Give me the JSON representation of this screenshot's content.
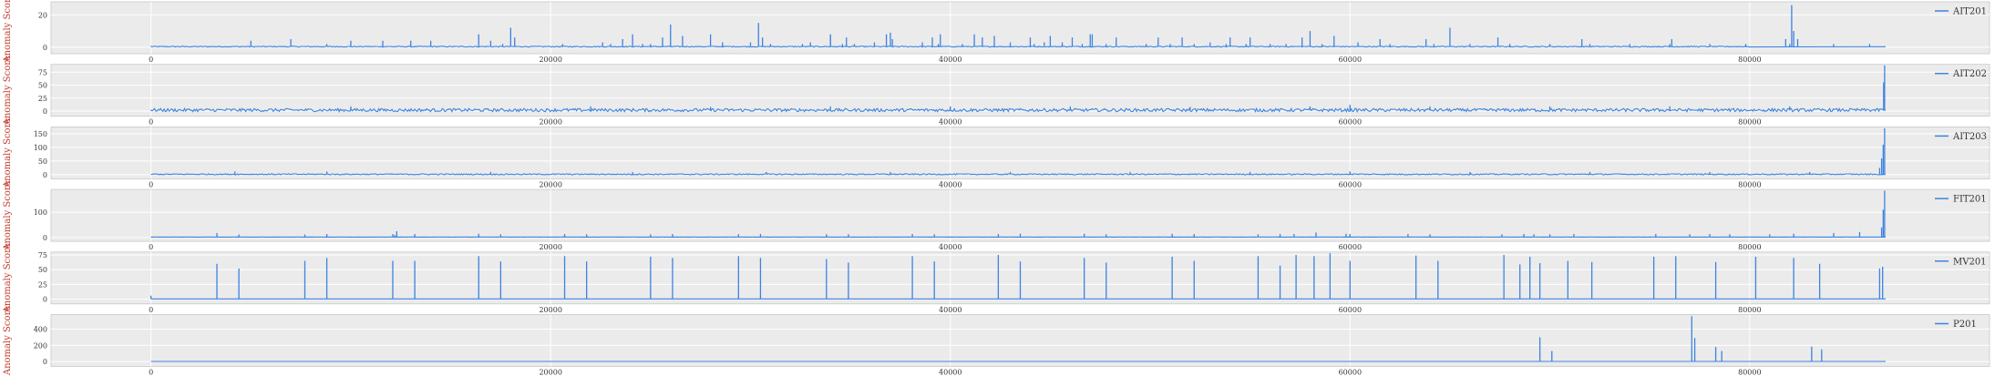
{
  "figure": {
    "ylabel": "Anomaly Score",
    "colors": {
      "line": "#3c83e0",
      "panel_bg": "#ebebeb",
      "grid": "#ffffff",
      "frame": "#c8c8c8",
      "ylabel": "#c0392b"
    }
  },
  "chart_data": [
    {
      "type": "line",
      "series": [
        {
          "name": "AIT201"
        }
      ],
      "xlim": [
        -5000,
        92000
      ],
      "ylim": [
        -4,
        28
      ],
      "yticks": [
        0,
        20
      ],
      "xticks": [
        0,
        20000,
        40000,
        60000,
        80000
      ],
      "baseline": 0.3,
      "noise": 0.6,
      "noise_range": [
        0,
        80000
      ],
      "spikes": [
        [
          8800,
          2
        ],
        [
          17000,
          4
        ],
        [
          17600,
          2
        ],
        [
          20600,
          2
        ],
        [
          22600,
          3
        ],
        [
          23000,
          2
        ],
        [
          23600,
          5
        ],
        [
          24600,
          2
        ],
        [
          25000,
          2
        ],
        [
          28600,
          3
        ],
        [
          30000,
          3
        ],
        [
          31000,
          2
        ],
        [
          32600,
          2
        ],
        [
          33000,
          3
        ],
        [
          34600,
          2
        ],
        [
          35200,
          2
        ],
        [
          36200,
          3
        ],
        [
          38600,
          3
        ],
        [
          39400,
          2
        ],
        [
          40600,
          2
        ],
        [
          43000,
          3
        ],
        [
          44200,
          2
        ],
        [
          44700,
          3
        ],
        [
          45600,
          3
        ],
        [
          46600,
          2
        ],
        [
          47800,
          2
        ],
        [
          49800,
          2
        ],
        [
          51000,
          2
        ],
        [
          52200,
          2
        ],
        [
          53000,
          3
        ],
        [
          53800,
          2
        ],
        [
          54800,
          2
        ],
        [
          56000,
          2
        ],
        [
          56800,
          2
        ],
        [
          58600,
          2
        ],
        [
          60400,
          3
        ],
        [
          62000,
          2
        ],
        [
          64200,
          2
        ],
        [
          66000,
          2
        ],
        [
          68000,
          2
        ],
        [
          70000,
          2
        ],
        [
          72000,
          2
        ],
        [
          74000,
          2
        ],
        [
          76000,
          2
        ],
        [
          78000,
          2
        ],
        [
          79800,
          2
        ],
        [
          82000,
          2
        ],
        [
          84200,
          2
        ],
        [
          86000,
          2
        ],
        [
          16400,
          8
        ],
        [
          18000,
          12
        ],
        [
          18200,
          6
        ],
        [
          24100,
          8
        ],
        [
          25600,
          6
        ],
        [
          26600,
          7
        ],
        [
          28000,
          8
        ],
        [
          30600,
          6
        ],
        [
          34000,
          8
        ],
        [
          34800,
          6
        ],
        [
          36800,
          8
        ],
        [
          37100,
          5
        ],
        [
          39100,
          6
        ],
        [
          41200,
          8
        ],
        [
          41600,
          6
        ],
        [
          42200,
          7
        ],
        [
          44000,
          6
        ],
        [
          45000,
          7
        ],
        [
          46100,
          6
        ],
        [
          47000,
          8
        ],
        [
          48300,
          6
        ],
        [
          50400,
          6
        ],
        [
          51600,
          6
        ],
        [
          54000,
          6
        ],
        [
          55000,
          6
        ],
        [
          57600,
          6
        ],
        [
          59200,
          7
        ],
        [
          61500,
          5
        ],
        [
          63800,
          5
        ],
        [
          67400,
          6
        ],
        [
          71600,
          5
        ],
        [
          76100,
          5
        ],
        [
          5000,
          4
        ],
        [
          7000,
          5
        ],
        [
          10000,
          4
        ],
        [
          11600,
          4
        ],
        [
          13000,
          4
        ],
        [
          14000,
          4
        ],
        [
          26000,
          14
        ],
        [
          30400,
          15
        ],
        [
          34000,
          7
        ],
        [
          37000,
          9
        ],
        [
          47100,
          8
        ],
        [
          39500,
          8
        ],
        [
          58000,
          10
        ],
        [
          65000,
          12
        ],
        [
          82100,
          26
        ],
        [
          82200,
          10
        ],
        [
          81800,
          5
        ],
        [
          82400,
          5
        ]
      ]
    },
    {
      "type": "line",
      "series": [
        {
          "name": "AIT202"
        }
      ],
      "xlim": [
        -5000,
        92000
      ],
      "ylim": [
        -10,
        90
      ],
      "yticks": [
        0,
        25,
        50,
        75
      ],
      "xticks": [
        0,
        20000,
        40000,
        60000,
        80000
      ],
      "baseline": 1,
      "noise": 6,
      "noise_range": [
        0,
        86600
      ],
      "spikes": [
        [
          10000,
          9
        ],
        [
          22000,
          9
        ],
        [
          28000,
          8
        ],
        [
          34000,
          9
        ],
        [
          40000,
          9
        ],
        [
          46000,
          9
        ],
        [
          52000,
          8
        ],
        [
          58000,
          9
        ],
        [
          60000,
          12
        ],
        [
          64000,
          9
        ],
        [
          70000,
          9
        ],
        [
          76000,
          9
        ],
        [
          82000,
          9
        ],
        [
          86700,
          55
        ],
        [
          86750,
          88
        ]
      ]
    },
    {
      "type": "line",
      "series": [
        {
          "name": "AIT203"
        }
      ],
      "xlim": [
        -5000,
        92000
      ],
      "ylim": [
        -15,
        175
      ],
      "yticks": [
        0,
        50,
        100,
        150
      ],
      "xticks": [
        0,
        20000,
        40000,
        60000,
        80000
      ],
      "baseline": 1,
      "noise": 4,
      "noise_range": [
        0,
        86400
      ],
      "spikes": [
        [
          4200,
          12
        ],
        [
          8800,
          12
        ],
        [
          17000,
          10
        ],
        [
          24100,
          10
        ],
        [
          30800,
          10
        ],
        [
          37000,
          10
        ],
        [
          43000,
          10
        ],
        [
          49000,
          10
        ],
        [
          55000,
          10
        ],
        [
          60000,
          12
        ],
        [
          66000,
          10
        ],
        [
          72000,
          10
        ],
        [
          78000,
          10
        ],
        [
          83000,
          10
        ],
        [
          86500,
          25
        ],
        [
          86600,
          60
        ],
        [
          86680,
          110
        ],
        [
          86750,
          170
        ]
      ]
    },
    {
      "type": "line",
      "series": [
        {
          "name": "FIT201"
        }
      ],
      "xlim": [
        -5000,
        92000
      ],
      "ylim": [
        -15,
        190
      ],
      "yticks": [
        0,
        100
      ],
      "xticks": [
        0,
        20000,
        40000,
        60000,
        80000
      ],
      "baseline": 2,
      "noise": 0.5,
      "noise_range": [
        0,
        86500
      ],
      "spikes": [
        [
          3300,
          18
        ],
        [
          4400,
          12
        ],
        [
          7700,
          12
        ],
        [
          8800,
          14
        ],
        [
          12100,
          14
        ],
        [
          12200,
          10
        ],
        [
          12300,
          25
        ],
        [
          13200,
          14
        ],
        [
          16400,
          15
        ],
        [
          17500,
          13
        ],
        [
          20700,
          14
        ],
        [
          21800,
          13
        ],
        [
          25000,
          13
        ],
        [
          26100,
          14
        ],
        [
          29400,
          13
        ],
        [
          30500,
          14
        ],
        [
          33800,
          13
        ],
        [
          34900,
          13
        ],
        [
          38100,
          14
        ],
        [
          39200,
          13
        ],
        [
          42400,
          14
        ],
        [
          43500,
          15
        ],
        [
          46700,
          15
        ],
        [
          47800,
          13
        ],
        [
          51100,
          15
        ],
        [
          52200,
          14
        ],
        [
          55400,
          13
        ],
        [
          56500,
          14
        ],
        [
          57200,
          14
        ],
        [
          58300,
          20
        ],
        [
          59800,
          15
        ],
        [
          60000,
          14
        ],
        [
          62900,
          14
        ],
        [
          64000,
          13
        ],
        [
          67600,
          13
        ],
        [
          68700,
          14
        ],
        [
          69200,
          13
        ],
        [
          70000,
          13
        ],
        [
          71200,
          14
        ],
        [
          75300,
          14
        ],
        [
          77000,
          13
        ],
        [
          78000,
          14
        ],
        [
          79000,
          13
        ],
        [
          81000,
          13
        ],
        [
          82200,
          15
        ],
        [
          84200,
          18
        ],
        [
          85500,
          22
        ],
        [
          86600,
          40
        ],
        [
          86680,
          110
        ],
        [
          86750,
          185
        ]
      ]
    },
    {
      "type": "line",
      "series": [
        {
          "name": "MV201"
        }
      ],
      "xlim": [
        -5000,
        92000
      ],
      "ylim": [
        -8,
        80
      ],
      "yticks": [
        0,
        25,
        50,
        75
      ],
      "xticks": [
        0,
        20000,
        40000,
        60000,
        80000
      ],
      "baseline": 0.5,
      "noise": 0,
      "noise_range": [
        0,
        0
      ],
      "spikes": [
        [
          0,
          6
        ],
        [
          3300,
          60
        ],
        [
          4400,
          52
        ],
        [
          7700,
          65
        ],
        [
          8800,
          70
        ],
        [
          12100,
          65
        ],
        [
          13200,
          65
        ],
        [
          16400,
          73
        ],
        [
          17500,
          64
        ],
        [
          20700,
          73
        ],
        [
          21800,
          64
        ],
        [
          25000,
          72
        ],
        [
          26100,
          70
        ],
        [
          29400,
          73
        ],
        [
          30500,
          70
        ],
        [
          33800,
          68
        ],
        [
          34900,
          62
        ],
        [
          38100,
          73
        ],
        [
          39200,
          64
        ],
        [
          42400,
          75
        ],
        [
          43500,
          64
        ],
        [
          46700,
          70
        ],
        [
          47800,
          62
        ],
        [
          51100,
          72
        ],
        [
          52200,
          65
        ],
        [
          55400,
          73
        ],
        [
          56500,
          57
        ],
        [
          57300,
          75
        ],
        [
          58200,
          73
        ],
        [
          59000,
          78
        ],
        [
          60000,
          65
        ],
        [
          63300,
          74
        ],
        [
          64400,
          65
        ],
        [
          67700,
          75
        ],
        [
          68500,
          59
        ],
        [
          69000,
          72
        ],
        [
          69500,
          61
        ],
        [
          70900,
          65
        ],
        [
          72100,
          63
        ],
        [
          75200,
          72
        ],
        [
          76300,
          73
        ],
        [
          78300,
          63
        ],
        [
          80300,
          72
        ],
        [
          82200,
          70
        ],
        [
          83500,
          60
        ],
        [
          86500,
          52
        ],
        [
          86650,
          55
        ]
      ]
    },
    {
      "type": "line",
      "series": [
        {
          "name": "P201"
        }
      ],
      "xlim": [
        -5000,
        92000
      ],
      "ylim": [
        -60,
        580
      ],
      "yticks": [
        0,
        200,
        400
      ],
      "xticks": [
        0,
        20000,
        40000,
        60000,
        80000
      ],
      "baseline": 2,
      "noise": 0,
      "noise_range": [
        0,
        0
      ],
      "spikes": [
        [
          69500,
          300
        ],
        [
          70100,
          130
        ],
        [
          77100,
          560
        ],
        [
          77250,
          290
        ],
        [
          78300,
          180
        ],
        [
          78600,
          130
        ],
        [
          83100,
          185
        ],
        [
          83600,
          150
        ]
      ]
    }
  ]
}
